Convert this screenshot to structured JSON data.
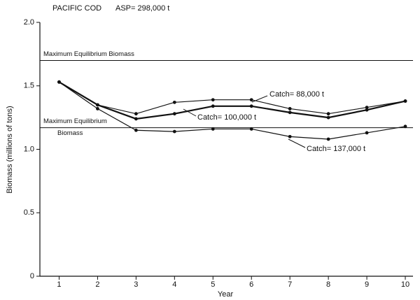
{
  "chart_data": {
    "type": "line",
    "title": "PACIFIC COD",
    "subtitle": "ASP= 298,000 t",
    "x_label": "Year",
    "y_label": "Biomass (millions of tons)",
    "x": [
      1,
      2,
      3,
      4,
      5,
      6,
      7,
      8,
      9,
      10
    ],
    "xlim": [
      0.5,
      10.2
    ],
    "xticks": [
      1,
      2,
      3,
      4,
      5,
      6,
      7,
      8,
      9,
      10
    ],
    "ylim": [
      0,
      2
    ],
    "yticks": [
      0,
      0.5,
      {
        "value": 1,
        "label": "1.0"
      },
      1.5,
      {
        "value": 2,
        "label": "2.0"
      }
    ],
    "series": [
      {
        "name": "Catch= 88,000 t",
        "color": "#111111",
        "values": [
          1.53,
          1.35,
          1.28,
          1.37,
          1.39,
          1.39,
          1.32,
          1.28,
          1.33,
          1.38
        ]
      },
      {
        "name": "Catch= 100,000 t",
        "color": "#111111",
        "values": [
          1.53,
          1.35,
          1.24,
          1.28,
          1.34,
          1.34,
          1.29,
          1.25,
          1.31,
          1.38
        ]
      },
      {
        "name": "Catch= 137,000 t",
        "color": "#111111",
        "values": [
          1.53,
          1.32,
          1.15,
          1.14,
          1.16,
          1.16,
          1.1,
          1.08,
          1.13,
          1.18
        ]
      }
    ],
    "reference_lines": [
      {
        "label": [
          "Maximum Equilibrium Biomass"
        ],
        "value": 1.7
      },
      {
        "label": [
          "Maximum Equilibrium",
          "Biomass"
        ],
        "value": 1.17
      }
    ]
  }
}
